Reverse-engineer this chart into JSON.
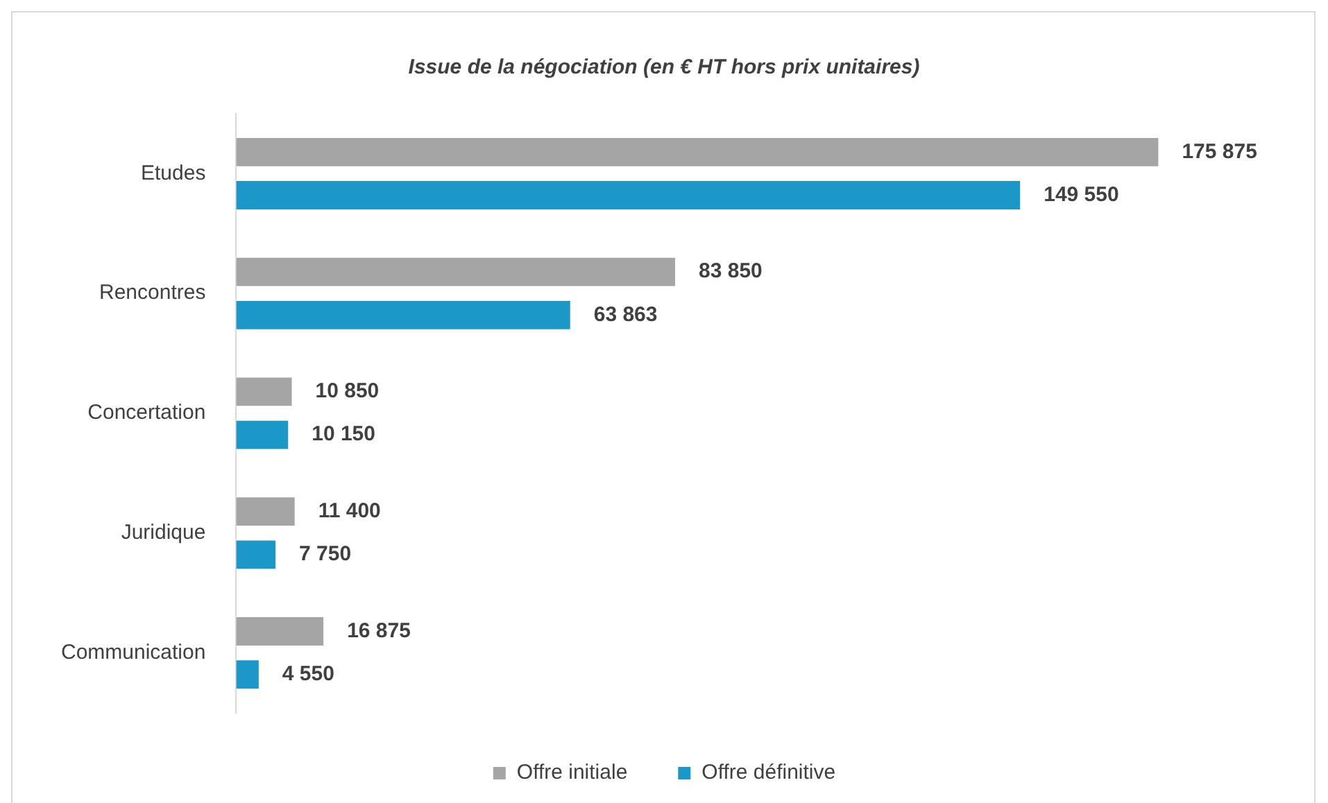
{
  "chart_data": {
    "type": "bar",
    "orientation": "horizontal",
    "title": "Issue de la négociation (en € HT hors prix unitaires)",
    "categories": [
      "Etudes",
      "Rencontres",
      "Concertation",
      "Juridique",
      "Communication"
    ],
    "series": [
      {
        "name": "Offre initiale",
        "color": "#a5a5a5",
        "values": [
          175875,
          83850,
          10850,
          11400,
          16875
        ],
        "value_labels": [
          "175 875",
          "83 850",
          "10 850",
          "11 400",
          "16 875"
        ]
      },
      {
        "name": "Offre définitive",
        "color": "#1b98c8",
        "values": [
          149550,
          63863,
          10150,
          7750,
          4550
        ],
        "value_labels": [
          "149 550",
          "63 863",
          "10 150",
          "7 750",
          "4 550"
        ]
      }
    ],
    "legend": "bottom",
    "tick_labels": "y"
  }
}
